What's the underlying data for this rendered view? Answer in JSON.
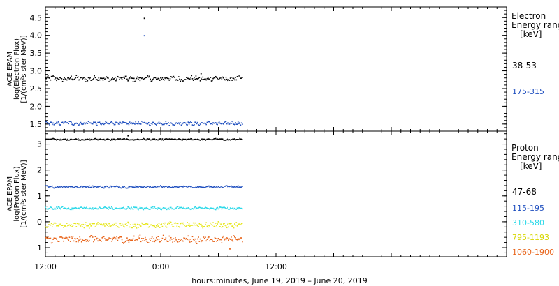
{
  "chart_data": [
    {
      "type": "scatter",
      "panel": "electron",
      "ylabel_lines": [
        "ACE EPAM",
        "log(Electron Flux)",
        "[1/(cm²s ster MeV)]"
      ],
      "ylim": [
        1.3,
        4.8
      ],
      "yticks": [
        "1.5",
        "2.0",
        "2.5",
        "3.0",
        "3.5",
        "4.0",
        "4.5"
      ],
      "legend_title": [
        "Electron",
        "Energy ranges"
      ],
      "legend_unit": "[keV]",
      "series": [
        {
          "name": "38-53",
          "color": "#000000",
          "mean": 2.78,
          "spread": 0.07,
          "outliers": [
            {
              "x": 10.3,
              "y": 4.48
            },
            {
              "x": 16.2,
              "y": 2.92
            }
          ]
        },
        {
          "name": "175-315",
          "color": "#1f4fbf",
          "mean": 1.52,
          "spread": 0.05,
          "outliers": [
            {
              "x": 10.3,
              "y": 3.99
            }
          ]
        }
      ]
    },
    {
      "type": "scatter",
      "panel": "proton",
      "ylabel_lines": [
        "ACE EPAM",
        "log(Proton Flux)",
        "[1/(cm²s ster MeV)]"
      ],
      "ylim": [
        -1.35,
        3.5
      ],
      "yticks": [
        "−1",
        "0",
        "1",
        "2",
        "3"
      ],
      "legend_title": [
        "Proton",
        "Energy ranges"
      ],
      "legend_unit": "[keV]",
      "series": [
        {
          "name": "47-68",
          "color": "#000000",
          "mean": 3.18,
          "spread": 0.03,
          "outliers": [
            {
              "x": 8.6,
              "y": 3.32
            }
          ]
        },
        {
          "name": "115-195",
          "color": "#1f4fbf",
          "mean": 1.35,
          "spread": 0.04,
          "outliers": []
        },
        {
          "name": "310-580",
          "color": "#29d8e8",
          "mean": 0.52,
          "spread": 0.05,
          "outliers": []
        },
        {
          "name": "795-1193",
          "color": "#e6e619",
          "mean": -0.12,
          "spread": 0.1,
          "outliers": []
        },
        {
          "name": "1060-1900",
          "color": "#e8641a",
          "mean": -0.68,
          "spread": 0.13,
          "outliers": [
            {
              "x": 19.2,
              "y": -1.05
            }
          ]
        }
      ]
    }
  ],
  "x_axis": {
    "xlim": [
      0,
      48
    ],
    "data_end": 20.5,
    "tick_labels": [
      {
        "x": 0,
        "label": "12:00"
      },
      {
        "x": 12,
        "label": "0:00"
      },
      {
        "x": 24,
        "label": "12:00"
      }
    ],
    "xlabel": "hours:minutes, June 19, 2019 – June 20, 2019"
  },
  "colors": {
    "axis": "#000000",
    "background": "#ffffff"
  }
}
